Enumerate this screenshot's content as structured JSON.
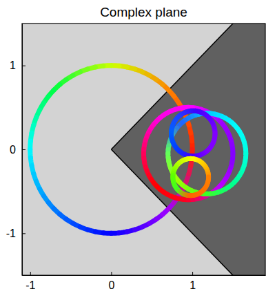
{
  "chart_data": {
    "type": "parametric",
    "title": "Complex plane",
    "xlim": [
      -1.1,
      1.9
    ],
    "ylim": [
      -1.5,
      1.5
    ],
    "xticks": [
      -1,
      0,
      1
    ],
    "yticks": [
      -1,
      0,
      1
    ],
    "region": {
      "vertices": [
        [
          0,
          0
        ],
        [
          3,
          3
        ],
        [
          3,
          -3
        ]
      ],
      "color": "#606060"
    },
    "series": [
      {
        "center": [
          0,
          0
        ],
        "radius": 1,
        "colors": [
          "#ff2000",
          "#ff8000",
          "#d0ff00",
          "#00ff40",
          "#00ffff",
          "#0080ff",
          "#0000ff",
          "#a000ff"
        ]
      },
      {
        "center": [
          0.95,
          -0.05
        ],
        "radius": 0.55,
        "colors": [
          "#8000ff",
          "#a000ff",
          "#ff00ff",
          "#ff00e0",
          "#ff0060",
          "#ff0000",
          "#ff0020",
          "#c000ff"
        ]
      },
      {
        "center": [
          1.18,
          -0.05
        ],
        "radius": 0.48,
        "colors": [
          "#00ffe0",
          "#00ffff",
          "#00d0ff",
          "#2060ff",
          "#60ff60",
          "#a0ff00",
          "#40ff20",
          "#00ff90"
        ]
      },
      {
        "center": [
          1.01,
          0.19
        ],
        "radius": 0.27,
        "colors": [
          "#8000ff",
          "#6000ff",
          "#4000ff",
          "#2040ff",
          "#0060ff",
          "#0040ff",
          "#4000ff",
          "#8000ff"
        ]
      },
      {
        "center": [
          0.98,
          -0.33
        ],
        "radius": 0.22,
        "colors": [
          "#ff8000",
          "#ffc000",
          "#ffff00",
          "#c0ff00",
          "#60ff00",
          "#40ff20",
          "#ff6000",
          "#ff7000"
        ]
      }
    ]
  }
}
